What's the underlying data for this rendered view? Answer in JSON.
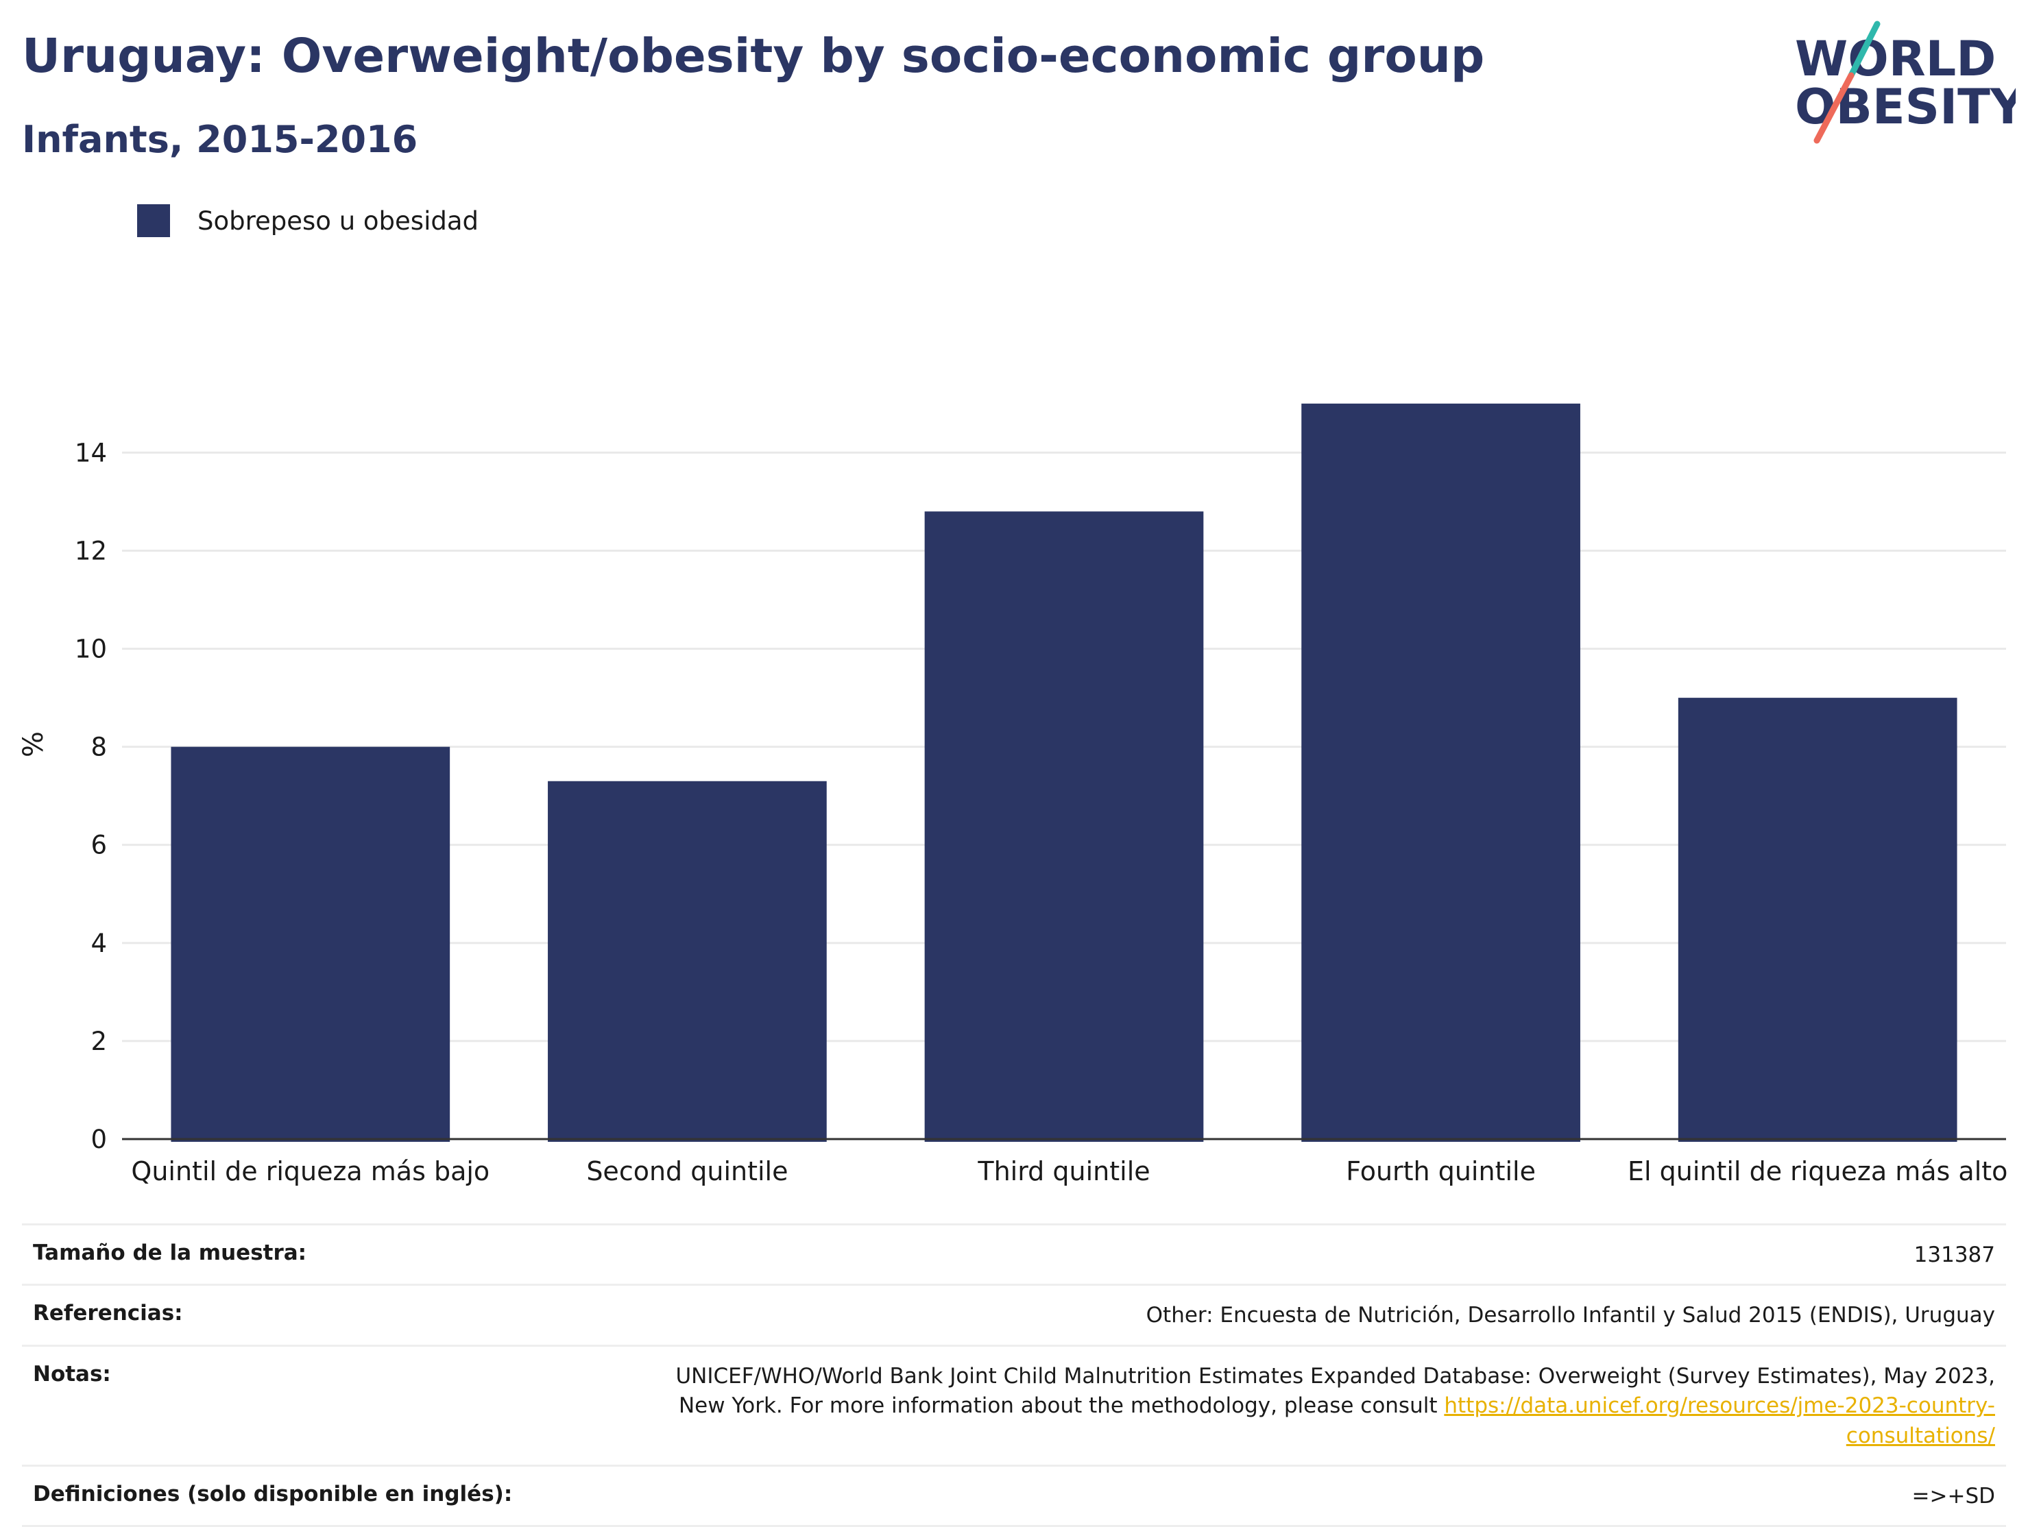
{
  "header": {
    "title": "Uruguay: Overweight/obesity by socio-economic group",
    "subtitle": "Infants, 2015-2016"
  },
  "logo": {
    "line1": "WORLD",
    "line2": "OBESITY",
    "colors": {
      "text": "#2b3664",
      "slash_top": "#2fb8ac",
      "slash_bottom": "#ee6a5a"
    }
  },
  "legend": {
    "label": "Sobrepeso u obesidad"
  },
  "chart_data": {
    "type": "bar",
    "categories": [
      "Quintil de riqueza más bajo",
      "Second quintile",
      "Third quintile",
      "Fourth quintile",
      "El quintil de riqueza más alto"
    ],
    "series": [
      {
        "name": "Sobrepeso u obesidad",
        "values": [
          8.0,
          7.3,
          12.8,
          15.0,
          9.0
        ],
        "color": "#2b3664"
      }
    ],
    "ylabel": "%",
    "xlabel": "",
    "ylim": [
      0,
      17.5
    ],
    "yticks": [
      0,
      2,
      4,
      6,
      8,
      10,
      12,
      14
    ],
    "grid": true,
    "legend_position": "top-left"
  },
  "meta": {
    "sample_label": "Tamaño de la muestra:",
    "sample_value": "131387",
    "references_label": "Referencias:",
    "references_value": "Other: Encuesta de Nutrición, Desarrollo Infantil y Salud 2015 (ENDIS), Uruguay",
    "notes_label": "Notas:",
    "notes_value": "UNICEF/WHO/World Bank Joint Child Malnutrition Estimates Expanded Database: Overweight (Survey Estimates), May 2023, New York. For more information about the methodology, please consult ",
    "notes_link": "https://data.unicef.org/resources/jme-2023-country-consultations/",
    "definitions_label": "Definiciones (solo disponible en inglés):",
    "definitions_value": "=>+SD"
  }
}
